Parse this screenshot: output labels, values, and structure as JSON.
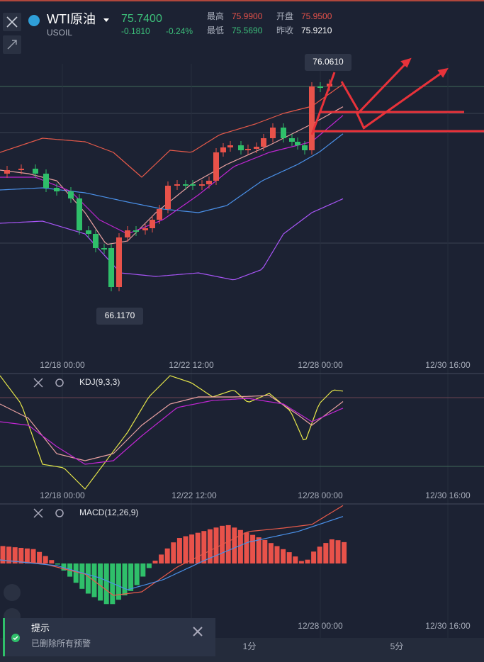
{
  "header": {
    "symbol": "WTI原油",
    "code": "USOIL",
    "price": "75.7400",
    "change": "-0.1810",
    "change_pct": "-0.24%",
    "stats": [
      {
        "label": "最高",
        "value": "75.9900"
      },
      {
        "label": "开盘",
        "value": "75.9500"
      },
      {
        "label": "最低",
        "value": "75.5690"
      },
      {
        "label": "昨收",
        "value": "75.9210"
      }
    ]
  },
  "main_chart": {
    "high_label": "76.0610",
    "low_label": "66.1170",
    "time_labels": [
      "12/18 00:00",
      "12/22 12:00",
      "12/28 00:00",
      "12/30 16:00"
    ]
  },
  "kdj": {
    "title": "KDJ(9,3,3)",
    "time_labels": [
      "12/18 00:00",
      "12/22 12:00",
      "12/28 00:00",
      "12/30 16:00"
    ]
  },
  "macd": {
    "title": "MACD(12,26,9)",
    "time_labels": [
      "12/28 00:00",
      "12/30 16:00"
    ]
  },
  "toast": {
    "title": "提示",
    "message": "已删除所有预警"
  },
  "timeframes": [
    "1分",
    "5分"
  ]
}
